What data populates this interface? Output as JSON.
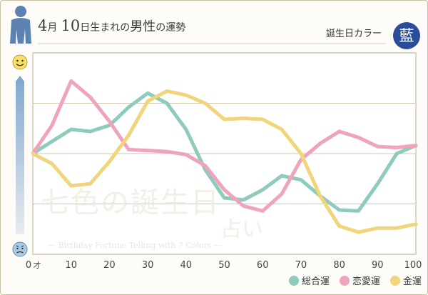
{
  "header": {
    "month": "4",
    "month_unit": "月",
    "day": "10",
    "day_unit": "日生まれの",
    "gender": "男性",
    "suffix": "の運勢",
    "color_label": "誕生日カラー",
    "color_kanji": "藍"
  },
  "watermark": {
    "main": "七色の誕生日",
    "sub": "占い",
    "tagline": "— Birthday Fortune Telling with 7 Colors —"
  },
  "colors": {
    "total": "#8ccbbd",
    "love": "#f0a3bd",
    "money": "#f2d47a",
    "badge": "#2b4b9b"
  },
  "chart_data": {
    "type": "line",
    "x_unit": "才",
    "xticks": [
      "0",
      "10",
      "20",
      "30",
      "40",
      "50",
      "60",
      "70",
      "80",
      "90",
      "100"
    ],
    "xlim": [
      0,
      100
    ],
    "ylim": [
      0,
      10
    ],
    "grid": true,
    "legend_position": "bottom-right",
    "series": [
      {
        "key": "total",
        "name": "総合運",
        "x": [
          0,
          10,
          15,
          20,
          25,
          30,
          35,
          40,
          45,
          50,
          55,
          60,
          65,
          70,
          75,
          80,
          85,
          90,
          95,
          100
        ],
        "y": [
          5.0,
          6.2,
          6.1,
          6.4,
          7.3,
          8.0,
          7.5,
          6.2,
          4.2,
          2.8,
          2.7,
          3.2,
          3.9,
          3.7,
          2.9,
          2.2,
          2.15,
          3.5,
          5.0,
          5.4
        ]
      },
      {
        "key": "love",
        "name": "恋愛運",
        "x": [
          0,
          5,
          10,
          15,
          20,
          25,
          30,
          35,
          40,
          45,
          50,
          55,
          60,
          65,
          70,
          75,
          80,
          85,
          90,
          95,
          100
        ],
        "y": [
          5.0,
          6.4,
          8.6,
          7.8,
          6.6,
          5.2,
          5.15,
          5.1,
          4.95,
          4.4,
          3.2,
          2.4,
          2.15,
          3.0,
          4.7,
          5.5,
          6.1,
          5.8,
          5.35,
          5.3,
          5.4
        ]
      },
      {
        "key": "money",
        "name": "金運",
        "x": [
          0,
          5,
          10,
          15,
          20,
          25,
          30,
          35,
          40,
          45,
          50,
          55,
          60,
          65,
          70,
          75,
          80,
          85,
          90,
          95,
          100
        ],
        "y": [
          5.0,
          4.5,
          3.4,
          3.5,
          4.6,
          5.9,
          7.6,
          8.1,
          7.9,
          7.5,
          6.7,
          6.75,
          6.7,
          6.2,
          5.0,
          2.9,
          1.4,
          1.1,
          1.3,
          1.3,
          1.5
        ]
      }
    ]
  }
}
